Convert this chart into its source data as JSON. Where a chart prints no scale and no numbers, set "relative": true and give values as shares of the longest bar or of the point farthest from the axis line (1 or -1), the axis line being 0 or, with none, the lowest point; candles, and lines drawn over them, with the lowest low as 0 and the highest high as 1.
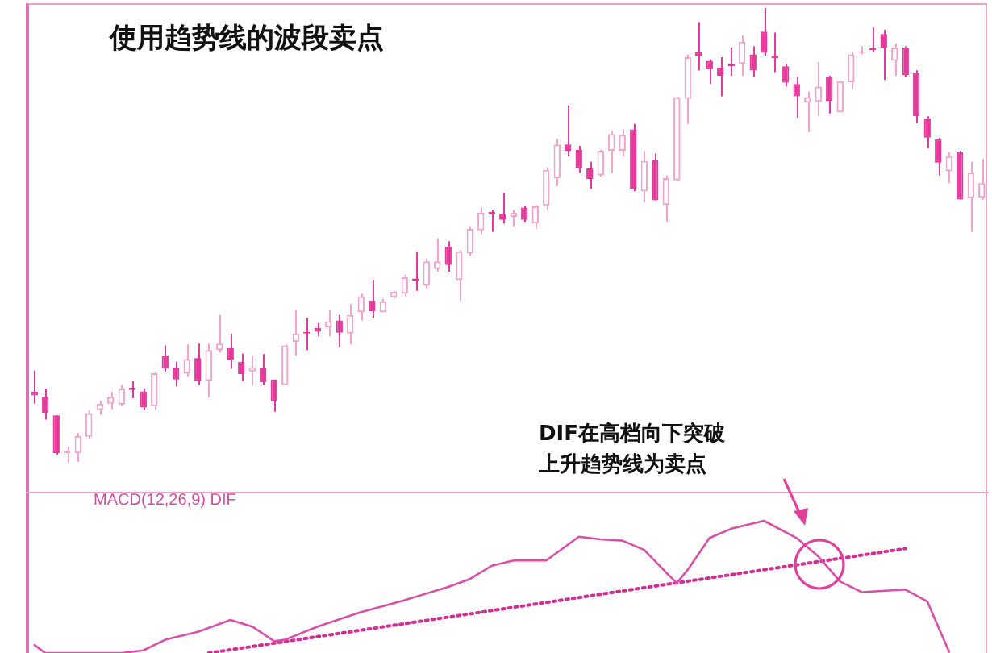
{
  "chart_data": [
    {
      "type": "candlestick",
      "title": "使用趋势线的波段卖点",
      "relative": true,
      "categories": [
        null,
        null,
        null,
        null,
        null,
        null,
        null,
        null,
        null,
        null,
        null,
        null,
        null,
        null,
        null,
        null,
        null,
        null,
        null,
        null,
        null,
        null,
        null,
        null,
        null,
        null,
        null,
        null,
        null,
        null,
        null,
        null,
        null,
        null,
        null,
        null,
        null,
        null,
        null,
        null,
        null,
        null,
        null,
        null,
        null,
        null,
        null,
        null,
        null,
        null,
        null,
        null,
        null,
        null,
        null,
        null,
        null,
        null,
        null,
        null,
        null,
        null,
        null,
        null,
        null,
        null,
        null,
        null,
        null,
        null,
        null,
        null,
        null,
        null,
        null,
        null,
        null,
        null,
        null,
        null,
        null,
        null,
        null,
        null,
        null,
        null,
        null,
        null
      ],
      "ohlc": [
        [
          0.156,
          0.203,
          0.13,
          0.148
        ],
        [
          0.145,
          0.163,
          0.095,
          0.11
        ],
        [
          0.104,
          0.104,
          0.018,
          0.021
        ],
        [
          0.021,
          0.035,
          0,
          0.026
        ],
        [
          0.021,
          0.065,
          0.002,
          0.059
        ],
        [
          0.057,
          0.116,
          0.053,
          0.109
        ],
        [
          0.116,
          0.136,
          0.106,
          0.13
        ],
        [
          0.13,
          0.156,
          0.118,
          0.145
        ],
        [
          0.128,
          0.171,
          0.124,
          0.163
        ],
        [
          0.165,
          0.18,
          0.142,
          0.16
        ],
        [
          0.157,
          0.163,
          0.116,
          0.122
        ],
        [
          0.124,
          0.199,
          0.116,
          0.197
        ],
        [
          0.236,
          0.258,
          0.201,
          0.207
        ],
        [
          0.209,
          0.222,
          0.168,
          0.183
        ],
        [
          0.197,
          0.26,
          0.189,
          0.228
        ],
        [
          0.23,
          0.262,
          0.171,
          0.18
        ],
        [
          0.18,
          0.262,
          0.144,
          0.248
        ],
        [
          0.248,
          0.325,
          0.242,
          0.262
        ],
        [
          0.252,
          0.284,
          0.207,
          0.227
        ],
        [
          0.222,
          0.24,
          0.18,
          0.195
        ],
        [
          0.201,
          0.236,
          0.171,
          0.21
        ],
        [
          0.209,
          0.239,
          0.171,
          0.177
        ],
        [
          0.183,
          0.183,
          0.112,
          0.136
        ],
        [
          0.171,
          0.26,
          0.171,
          0.258
        ],
        [
          0.266,
          0.337,
          0.236,
          0.284
        ],
        [
          0.286,
          0.319,
          0.248,
          0.284
        ],
        [
          0.296,
          0.307,
          0.278,
          0.288
        ],
        [
          0.298,
          0.337,
          0.278,
          0.311
        ],
        [
          0.313,
          0.325,
          0.254,
          0.286
        ],
        [
          0.284,
          0.349,
          0.26,
          0.325
        ],
        [
          0.331,
          0.372,
          0.313,
          0.366
        ],
        [
          0.357,
          0.402,
          0.319,
          0.333
        ],
        [
          0.331,
          0.361,
          0.331,
          0.355
        ],
        [
          0.364,
          0.378,
          0.361,
          0.376
        ],
        [
          0.372,
          0.414,
          0.366,
          0.408
        ],
        [
          0.405,
          0.465,
          0.378,
          0.4
        ],
        [
          0.39,
          0.449,
          0.384,
          0.443
        ],
        [
          0.426,
          0.494,
          0.42,
          0.443
        ],
        [
          0.475,
          0.487,
          0.42,
          0.435
        ],
        [
          0.402,
          0.467,
          0.357,
          0.465
        ],
        [
          0.461,
          0.52,
          0.455,
          0.514
        ],
        [
          0.511,
          0.561,
          0.502,
          0.55
        ],
        [
          0.552,
          0.556,
          0.508,
          0.546
        ],
        [
          0.547,
          0.593,
          0.526,
          0.534
        ],
        [
          0.541,
          0.556,
          0.52,
          0.55
        ],
        [
          0.561,
          0.564,
          0.53,
          0.534
        ],
        [
          0.526,
          0.567,
          0.514,
          0.564
        ],
        [
          0.565,
          0.65,
          0.556,
          0.644
        ],
        [
          0.626,
          0.712,
          0.609,
          0.7
        ],
        [
          0.7,
          0.786,
          0.674,
          0.686
        ],
        [
          0.688,
          0.697,
          0.638,
          0.648
        ],
        [
          0.647,
          0.662,
          0.603,
          0.624
        ],
        [
          0.632,
          0.688,
          0.629,
          0.686
        ],
        [
          0.686,
          0.73,
          0.638,
          0.723
        ],
        [
          0.686,
          0.733,
          0.674,
          0.721
        ],
        [
          0.733,
          0.745,
          0.597,
          0.603
        ],
        [
          0.597,
          0.686,
          0.573,
          0.664
        ],
        [
          0.665,
          0.68,
          0.577,
          0.577
        ],
        [
          0.567,
          0.632,
          0.53,
          0.626
        ],
        [
          0.621,
          0.804,
          0.621,
          0.804
        ],
        [
          0.8,
          0.898,
          0.745,
          0.892
        ],
        [
          0.904,
          0.969,
          0.863,
          0.895
        ],
        [
          0.884,
          0.887,
          0.833,
          0.866
        ],
        [
          0.869,
          0.892,
          0.806,
          0.851
        ],
        [
          0.877,
          0.913,
          0.851,
          0.872
        ],
        [
          0.877,
          0.94,
          0.851,
          0.926
        ],
        [
          0.898,
          0.916,
          0.848,
          0.863
        ],
        [
          0.948,
          1,
          0.895,
          0.902
        ],
        [
          0.895,
          0.946,
          0.859,
          0.889
        ],
        [
          0.872,
          0.877,
          0.827,
          0.836
        ],
        [
          0.833,
          0.849,
          0.759,
          0.806
        ],
        [
          0.792,
          0.816,
          0.727,
          0.804
        ],
        [
          0.794,
          0.881,
          0.762,
          0.827
        ],
        [
          0.848,
          0.851,
          0.768,
          0.796
        ],
        [
          0.771,
          0.839,
          0.771,
          0.839
        ],
        [
          0.837,
          0.904,
          0.822,
          0.898
        ],
        [
          0.901,
          0.916,
          0.898,
          0.904
        ],
        [
          0.913,
          0.957,
          0.904,
          0.908
        ],
        [
          0.943,
          0.952,
          0.842,
          0.913
        ],
        [
          0.884,
          0.922,
          0.851,
          0.913
        ],
        [
          0.913,
          0.916,
          0.849,
          0.853
        ],
        [
          0.857,
          0.863,
          0.747,
          0.762
        ],
        [
          0.757,
          0.762,
          0.691,
          0.715
        ],
        [
          0.712,
          0.715,
          0.632,
          0.66
        ],
        [
          0.641,
          0.683,
          0.615,
          0.674
        ],
        [
          0.683,
          0.686,
          0.579,
          0.579
        ],
        [
          0.582,
          0.662,
          0.508,
          0.638
        ],
        [
          0.583,
          0.668,
          0.579,
          0.615
        ]
      ],
      "colors": [
        "#e5399b",
        "#e5399b",
        "#e5399b",
        "#f4a3cc",
        "#f4a3cc",
        "#f4a3cc",
        "#f4a3cc",
        "#f4a3cc",
        "#f4a3cc",
        "#e5399b",
        "#e5399b",
        "#f4a3cc",
        "#e5399b",
        "#e5399b",
        "#f4a3cc",
        "#e5399b",
        "#f4a3cc",
        "#f4a3cc",
        "#e5399b",
        "#e5399b",
        "#f4a3cc",
        "#e5399b",
        "#e5399b",
        "#f4a3cc",
        "#f4a3cc",
        "#e5399b",
        "#e5399b",
        "#f4a3cc",
        "#e5399b",
        "#f4a3cc",
        "#f4a3cc",
        "#e5399b",
        "#f4a3cc",
        "#f4a3cc",
        "#f4a3cc",
        "#e5399b",
        "#f4a3cc",
        "#f4a3cc",
        "#e5399b",
        "#f4a3cc",
        "#f4a3cc",
        "#f4a3cc",
        "#e5399b",
        "#e5399b",
        "#f4a3cc",
        "#e5399b",
        "#f4a3cc",
        "#f4a3cc",
        "#f4a3cc",
        "#e5399b",
        "#e5399b",
        "#e5399b",
        "#f4a3cc",
        "#f4a3cc",
        "#f4a3cc",
        "#e5399b",
        "#f4a3cc",
        "#e5399b",
        "#f4a3cc",
        "#f4a3cc",
        "#f4a3cc",
        "#e5399b",
        "#e5399b",
        "#e5399b",
        "#e5399b",
        "#f4a3cc",
        "#e5399b",
        "#e5399b",
        "#e5399b",
        "#e5399b",
        "#e5399b",
        "#f4a3cc",
        "#f4a3cc",
        "#e5399b",
        "#f4a3cc",
        "#f4a3cc",
        "#f4a3cc",
        "#e5399b",
        "#e5399b",
        "#f4a3cc",
        "#e5399b",
        "#e5399b",
        "#e5399b",
        "#e5399b",
        "#f4a3cc",
        "#e5399b",
        "#f4a3cc",
        "#f4a3cc"
      ]
    },
    {
      "type": "line",
      "title": "MACD(12,26,9) DIF",
      "relative": true,
      "marker": "none",
      "categories": [
        null,
        null,
        null,
        null,
        null,
        null,
        null,
        null,
        null,
        null,
        null,
        null,
        null,
        null,
        null,
        null,
        null,
        null,
        null,
        null,
        null,
        null,
        null,
        null,
        null,
        null,
        null,
        null,
        null,
        null,
        null,
        null,
        null,
        null,
        null,
        null,
        null,
        null,
        null,
        null,
        null,
        null,
        null,
        null,
        null,
        null,
        null,
        null,
        null,
        null,
        null,
        null,
        null,
        null,
        null,
        null,
        null,
        null,
        null,
        null,
        null,
        null,
        null,
        null,
        null,
        null,
        null,
        null,
        null,
        null,
        null,
        null,
        null,
        null,
        null,
        null,
        null,
        null,
        null,
        null,
        null,
        null,
        null,
        null,
        null,
        null,
        null,
        null
      ],
      "series": [
        {
          "color": "#d94fa8",
          "values": [
            0.06,
            0,
            null,
            null,
            null,
            null,
            null,
            null,
            0,
            null,
            0.02,
            null,
            0.1,
            null,
            null,
            0.16,
            null,
            null,
            0.25,
            null,
            0.2,
            null,
            0.09,
            0.1,
            null,
            null,
            0.2,
            null,
            null,
            null,
            0.31,
            null,
            null,
            null,
            0.4,
            null,
            null,
            null,
            0.5,
            null,
            0.56,
            null,
            0.66,
            null,
            0.7,
            null,
            null,
            0.7,
            null,
            null,
            0.88,
            null,
            0.86,
            null,
            0.85,
            null,
            0.78,
            null,
            0.61,
            0.53,
            0.63,
            null,
            0.87,
            null,
            0.94,
            null,
            null,
            1,
            null,
            null,
            0.87,
            null,
            0.73,
            null,
            0.54,
            null,
            0.46,
            null,
            null,
            null,
            0.48,
            null,
            0.39,
            null,
            0.01,
            null,
            null,
            null
          ]
        },
        {
          "color": "#d12f93",
          "line_style": "dotted",
          "values": [
            null,
            null,
            null,
            null,
            null,
            null,
            null,
            null,
            null,
            null,
            null,
            null,
            null,
            null,
            null,
            null,
            0,
            null,
            null,
            null,
            null,
            null,
            null,
            null,
            null,
            null,
            null,
            null,
            null,
            null,
            null,
            null,
            null,
            null,
            null,
            null,
            null,
            null,
            null,
            null,
            null,
            null,
            null,
            null,
            null,
            null,
            null,
            null,
            null,
            null,
            null,
            null,
            null,
            null,
            null,
            null,
            null,
            null,
            null,
            null,
            null,
            null,
            null,
            null,
            null,
            null,
            null,
            null,
            null,
            null,
            null,
            null,
            null,
            null,
            null,
            null,
            null,
            null,
            null,
            null,
            0.79,
            null,
            null,
            null,
            null,
            null,
            null,
            null
          ]
        }
      ],
      "annotations": [
        "DIF在高档向下突破",
        "上升趋势线为卖点"
      ]
    }
  ]
}
